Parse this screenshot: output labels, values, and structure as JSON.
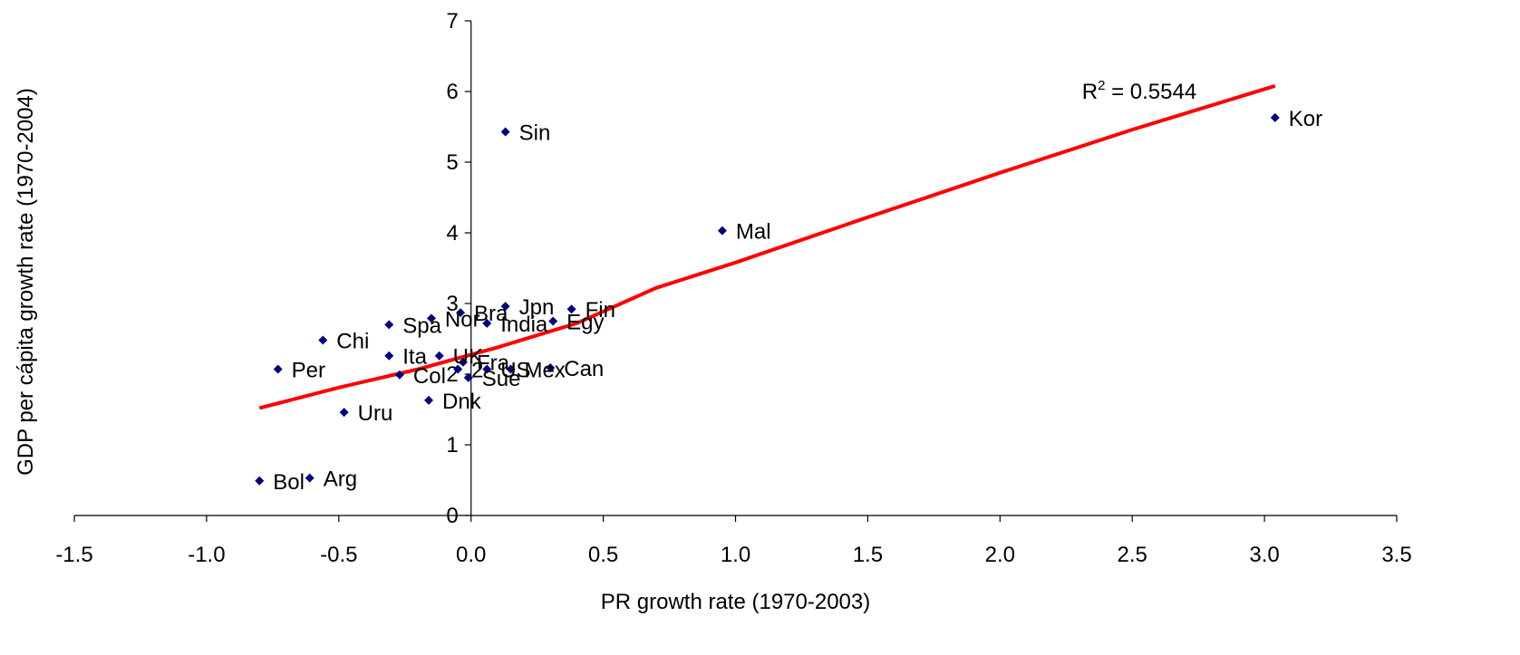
{
  "chart_data": {
    "type": "scatter",
    "title": "",
    "xlabel": "PR growth rate (1970-2003)",
    "ylabel": "GDP per cápita growth rate (1970-2004)",
    "xlim": [
      -1.5,
      3.5
    ],
    "ylim": [
      0,
      7
    ],
    "xticks": [
      "-1.5",
      "-1.0",
      "-0.5",
      "0.0",
      "0.5",
      "1.0",
      "1.5",
      "2.0",
      "2.5",
      "3.0",
      "3.5"
    ],
    "yticks": [
      "0",
      "1",
      "2",
      "3",
      "4",
      "5",
      "6",
      "7"
    ],
    "grid": false,
    "legend": "none",
    "marker_color": "#000080",
    "trendline_color": "#ff0000",
    "r2_label": {
      "base": "R",
      "sup": "2",
      "rest": " = 0.5544"
    },
    "trendline": {
      "x": [
        -0.8,
        -0.5,
        -0.2,
        0.1,
        0.4,
        0.7,
        1.0,
        1.5,
        2.0,
        2.5,
        3.04
      ],
      "y": [
        1.52,
        1.81,
        2.07,
        2.38,
        2.72,
        3.22,
        3.58,
        4.22,
        4.85,
        5.46,
        6.08
      ]
    },
    "points": [
      {
        "label": "Kor",
        "x": 3.04,
        "y": 5.63
      },
      {
        "label": "Sin",
        "x": 0.13,
        "y": 5.43
      },
      {
        "label": "Mal",
        "x": 0.95,
        "y": 4.03
      },
      {
        "label": "Jpn",
        "x": 0.13,
        "y": 2.96
      },
      {
        "label": "Fin",
        "x": 0.38,
        "y": 2.92
      },
      {
        "label": "Bra",
        "x": -0.04,
        "y": 2.87
      },
      {
        "label": "Nor",
        "x": -0.15,
        "y": 2.79
      },
      {
        "label": "India",
        "x": 0.06,
        "y": 2.72
      },
      {
        "label": "Egy",
        "x": 0.31,
        "y": 2.75
      },
      {
        "label": "Spa",
        "x": -0.31,
        "y": 2.7
      },
      {
        "label": "Chi",
        "x": -0.56,
        "y": 2.48
      },
      {
        "label": "Ita",
        "x": -0.31,
        "y": 2.26
      },
      {
        "label": "UK",
        "x": -0.12,
        "y": 2.26
      },
      {
        "label": "Fra",
        "x": -0.03,
        "y": 2.17
      },
      {
        "label": "US",
        "x": 0.06,
        "y": 2.07
      },
      {
        "label": "Mex",
        "x": 0.15,
        "y": 2.07
      },
      {
        "label": "Can",
        "x": 0.3,
        "y": 2.09
      },
      {
        "label": "Per",
        "x": -0.73,
        "y": 2.07
      },
      {
        "label": "Col",
        "x": -0.27,
        "y": 1.99
      },
      {
        "label": "Sue",
        "x": -0.01,
        "y": 1.95
      },
      {
        "label": "2",
        "x": -0.05,
        "y": 2.07
      },
      {
        "label": "Dnk",
        "x": -0.16,
        "y": 1.63
      },
      {
        "label": "Uru",
        "x": -0.48,
        "y": 1.46
      },
      {
        "label": "Arg",
        "x": -0.61,
        "y": 0.53
      },
      {
        "label": "Bol",
        "x": -0.8,
        "y": 0.49
      }
    ]
  }
}
